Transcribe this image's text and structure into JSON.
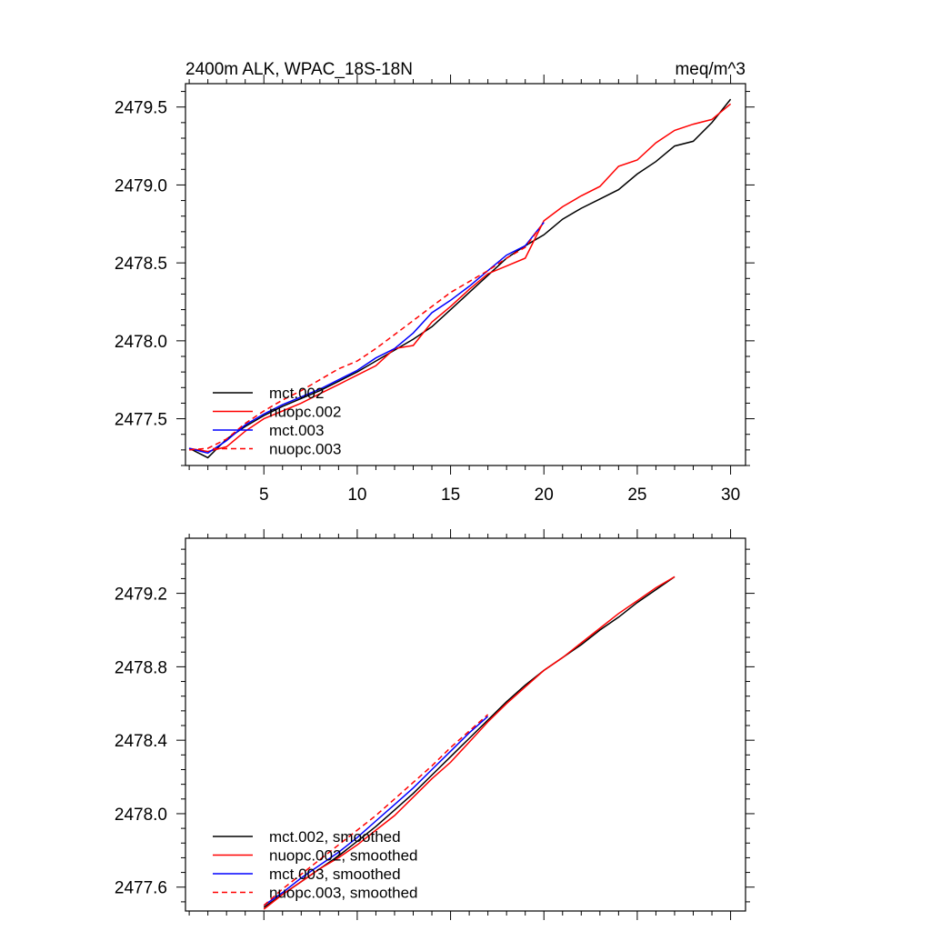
{
  "chart_data": [
    {
      "type": "line",
      "title_left": "2400m ALK, WPAC_18S-18N",
      "title_right": "meq/m^3",
      "xlabel": "",
      "ylabel": "",
      "xlim": [
        0.8,
        30.8
      ],
      "ylim": [
        2477.2,
        2479.65
      ],
      "xticks": [
        5,
        10,
        15,
        20,
        25,
        30
      ],
      "xtick_labels": [
        "5",
        "10",
        "15",
        "20",
        "25",
        "30"
      ],
      "yticks": [
        2477.5,
        2478.0,
        2478.5,
        2479.0,
        2479.5
      ],
      "ytick_labels": [
        "2477.5",
        "2478.0",
        "2478.5",
        "2479.0",
        "2479.5"
      ],
      "legend_position": "bottom-left",
      "series": [
        {
          "name": "mct.002",
          "color": "#000000",
          "dash": "solid",
          "x": [
            1,
            2,
            3,
            4,
            5,
            6,
            7,
            8,
            9,
            10,
            11,
            12,
            13,
            14,
            15,
            16,
            17,
            18,
            19,
            20,
            21,
            22,
            23,
            24,
            25,
            26,
            27,
            28,
            29,
            30
          ],
          "values": [
            2477.31,
            2477.25,
            2477.37,
            2477.45,
            2477.52,
            2477.58,
            2477.63,
            2477.68,
            2477.74,
            2477.8,
            2477.87,
            2477.94,
            2478.01,
            2478.09,
            2478.2,
            2478.31,
            2478.42,
            2478.53,
            2478.61,
            2478.68,
            2478.78,
            2478.85,
            2478.91,
            2478.97,
            2479.07,
            2479.15,
            2479.25,
            2479.28,
            2479.4,
            2479.55
          ]
        },
        {
          "name": "nuopc.002",
          "color": "#ff0000",
          "dash": "solid",
          "x": [
            1,
            2,
            3,
            4,
            5,
            6,
            7,
            8,
            9,
            10,
            11,
            12,
            13,
            14,
            15,
            16,
            17,
            18,
            19,
            20,
            21,
            22,
            23,
            24,
            25,
            26,
            27,
            28,
            29,
            30
          ],
          "values": [
            2477.31,
            2477.29,
            2477.32,
            2477.42,
            2477.5,
            2477.55,
            2477.6,
            2477.66,
            2477.72,
            2477.78,
            2477.84,
            2477.95,
            2477.97,
            2478.12,
            2478.22,
            2478.33,
            2478.43,
            2478.48,
            2478.53,
            2478.77,
            2478.86,
            2478.93,
            2478.99,
            2479.12,
            2479.16,
            2479.27,
            2479.35,
            2479.39,
            2479.42,
            2479.52
          ]
        },
        {
          "name": "mct.003",
          "color": "#0000ff",
          "dash": "solid",
          "x": [
            1,
            2,
            3,
            4,
            5,
            6,
            7,
            8,
            9,
            10,
            11,
            12,
            13,
            14,
            15,
            16,
            17,
            18,
            19,
            20
          ],
          "values": [
            2477.31,
            2477.28,
            2477.36,
            2477.46,
            2477.53,
            2477.59,
            2477.64,
            2477.69,
            2477.75,
            2477.81,
            2477.89,
            2477.95,
            2478.05,
            2478.18,
            2478.26,
            2478.35,
            2478.45,
            2478.55,
            2478.61,
            2478.76
          ]
        },
        {
          "name": "nuopc.003",
          "color": "#ff0000",
          "dash": "dashed",
          "x": [
            1,
            2,
            3,
            4,
            5,
            6,
            7,
            8,
            9,
            10,
            11,
            12,
            13,
            14,
            15,
            16,
            17,
            18,
            19,
            20
          ],
          "values": [
            2477.3,
            2477.31,
            2477.37,
            2477.47,
            2477.55,
            2477.62,
            2477.68,
            2477.75,
            2477.82,
            2477.87,
            2477.95,
            2478.04,
            2478.13,
            2478.22,
            2478.31,
            2478.38,
            2478.45,
            2478.53,
            2478.6,
            2478.76
          ]
        }
      ]
    },
    {
      "type": "line",
      "title_left": "",
      "title_right": "",
      "xlabel": "",
      "ylabel": "",
      "xlim": [
        0.8,
        30.8
      ],
      "ylim": [
        2477.47,
        2479.5
      ],
      "xticks": [
        5,
        10,
        15,
        20,
        25,
        30
      ],
      "xtick_labels": [
        "",
        "",
        "",
        "",
        "",
        ""
      ],
      "yticks": [
        2477.6,
        2478.0,
        2478.4,
        2478.8,
        2479.2
      ],
      "ytick_labels": [
        "2477.6",
        "2478.0",
        "2478.4",
        "2478.8",
        "2479.2"
      ],
      "legend_position": "bottom-left",
      "series": [
        {
          "name": "mct.002, smoothed",
          "color": "#000000",
          "dash": "solid",
          "x": [
            5,
            6,
            7,
            8,
            9,
            10,
            11,
            12,
            13,
            14,
            15,
            16,
            17,
            18,
            19,
            20,
            21,
            22,
            23,
            24,
            25,
            26,
            27
          ],
          "values": [
            2477.49,
            2477.56,
            2477.63,
            2477.7,
            2477.77,
            2477.85,
            2477.93,
            2478.02,
            2478.11,
            2478.21,
            2478.31,
            2478.41,
            2478.51,
            2478.61,
            2478.7,
            2478.78,
            2478.85,
            2478.92,
            2479.0,
            2479.07,
            2479.15,
            2479.22,
            2479.29
          ]
        },
        {
          "name": "nuopc.002, smoothed",
          "color": "#ff0000",
          "dash": "solid",
          "x": [
            5,
            6,
            7,
            8,
            9,
            10,
            11,
            12,
            13,
            14,
            15,
            16,
            17,
            18,
            19,
            20,
            21,
            22,
            23,
            24,
            25,
            26,
            27
          ],
          "values": [
            2477.48,
            2477.56,
            2477.63,
            2477.7,
            2477.76,
            2477.83,
            2477.91,
            2477.99,
            2478.09,
            2478.19,
            2478.28,
            2478.39,
            2478.5,
            2478.6,
            2478.69,
            2478.78,
            2478.85,
            2478.93,
            2479.01,
            2479.09,
            2479.16,
            2479.23,
            2479.29
          ]
        },
        {
          "name": "mct.003, smoothed",
          "color": "#0000ff",
          "dash": "solid",
          "x": [
            5,
            6,
            7,
            8,
            9,
            10,
            11,
            12,
            13,
            14,
            15,
            16,
            17
          ],
          "values": [
            2477.5,
            2477.57,
            2477.65,
            2477.72,
            2477.79,
            2477.87,
            2477.96,
            2478.05,
            2478.14,
            2478.24,
            2478.34,
            2478.44,
            2478.53
          ]
        },
        {
          "name": "nuopc.003, smoothed",
          "color": "#ff0000",
          "dash": "dashed",
          "x": [
            5,
            6,
            7,
            8,
            9,
            10,
            11,
            12,
            13,
            14,
            15,
            16,
            17
          ],
          "values": [
            2477.5,
            2477.59,
            2477.67,
            2477.75,
            2477.83,
            2477.91,
            2477.99,
            2478.08,
            2478.17,
            2478.26,
            2478.36,
            2478.45,
            2478.54
          ]
        }
      ]
    }
  ]
}
